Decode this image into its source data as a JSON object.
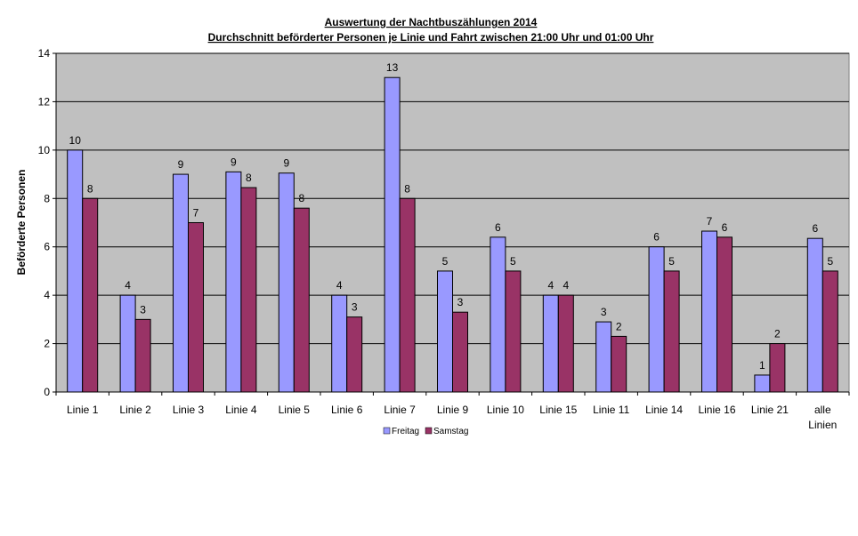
{
  "chart_data": {
    "type": "bar",
    "title": "Auswertung der Nachtbuszählungen 2014",
    "subtitle": "Durchschnitt beförderter Personen je Linie und Fahrt zwischen 21:00 Uhr und 01:00 Uhr",
    "xlabel": "",
    "ylabel": "Beförderte Personen",
    "ylim": [
      0,
      14
    ],
    "yticks": [
      0,
      2,
      4,
      6,
      8,
      10,
      12,
      14
    ],
    "grid": true,
    "legend_position": "bottom",
    "categories": [
      "Linie 1",
      "Linie 2",
      "Linie 3",
      "Linie 4",
      "Linie 5",
      "Linie 6",
      "Linie 7",
      "Linie 9",
      "Linie 10",
      "Linie 15",
      "Linie 11",
      "Linie 14",
      "Linie 16",
      "Linie 21",
      "alle Linien"
    ],
    "series": [
      {
        "name": "Freitag",
        "color": "#9999ff",
        "values": [
          10,
          4,
          9,
          9.1,
          9.05,
          4,
          13,
          5,
          6.4,
          4,
          2.9,
          6,
          6.65,
          0.7,
          6.35
        ],
        "labels": [
          "10",
          "4",
          "9",
          "9",
          "9",
          "4",
          "13",
          "5",
          "6",
          "4",
          "3",
          "6",
          "7",
          "1",
          "6"
        ]
      },
      {
        "name": "Samstag",
        "color": "#993366",
        "values": [
          8,
          3,
          7,
          8.45,
          7.6,
          3.1,
          8,
          3.3,
          5,
          4,
          2.3,
          5,
          6.4,
          2,
          5
        ],
        "labels": [
          "8",
          "3",
          "7",
          "8",
          "8",
          "3",
          "8",
          "3",
          "5",
          "4",
          "2",
          "5",
          "6",
          "2",
          "5"
        ]
      }
    ],
    "plot_background": "#c0c0c0"
  }
}
